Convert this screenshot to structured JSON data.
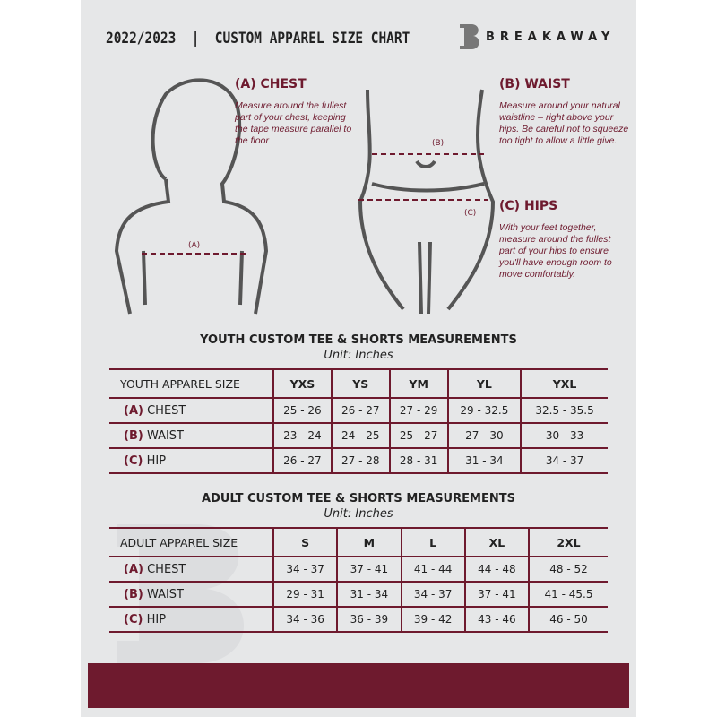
{
  "header": {
    "title": "2022/2023  |  CUSTOM APPAREL SIZE CHART",
    "brand": "BREAKAWAY",
    "logo_letter": "B"
  },
  "measures": {
    "chest": {
      "title": "(A) CHEST",
      "desc": "Measure around the fullest part of your chest, keeping the tape measure parallel to the floor",
      "marker": "(A)"
    },
    "waist": {
      "title": "(B) WAIST",
      "desc": "Measure around your natural waistline – right above your hips. Be careful not to squeeze too tight to allow a little give.",
      "marker": "(B)"
    },
    "hips": {
      "title": "(C) HIPS",
      "desc": "With your feet together, measure around the fullest part of your hips to ensure you'll have enough room to move comfortably.",
      "marker": "(C)"
    }
  },
  "youth": {
    "title": "YOUTH CUSTOM TEE & SHORTS MEASUREMENTS",
    "unit": "Unit: Inches",
    "size_label": "YOUTH APPAREL SIZE",
    "sizes": [
      "YXS",
      "YS",
      "YM",
      "YL",
      "YXL"
    ],
    "rows": [
      {
        "tag": "(A)",
        "name": "CHEST",
        "values": [
          "25 - 26",
          "26 - 27",
          "27 - 29",
          "29 - 32.5",
          "32.5 - 35.5"
        ]
      },
      {
        "tag": "(B)",
        "name": "WAIST",
        "values": [
          "23 - 24",
          "24 - 25",
          "25 - 27",
          "27 - 30",
          "30 - 33"
        ]
      },
      {
        "tag": "(C)",
        "name": "HIP",
        "values": [
          "26 - 27",
          "27 - 28",
          "28 - 31",
          "31 - 34",
          "34 - 37"
        ]
      }
    ]
  },
  "adult": {
    "title": "ADULT CUSTOM TEE & SHORTS MEASUREMENTS",
    "unit": "Unit: Inches",
    "size_label": "ADULT APPAREL SIZE",
    "sizes": [
      "S",
      "M",
      "L",
      "XL",
      "2XL"
    ],
    "rows": [
      {
        "tag": "(A)",
        "name": "CHEST",
        "values": [
          "34 - 37",
          "37 - 41",
          "41 - 44",
          "44 - 48",
          "48 - 52"
        ]
      },
      {
        "tag": "(B)",
        "name": "WAIST",
        "values": [
          "29 - 31",
          "31 - 34",
          "34 - 37",
          "37 - 41",
          "41 - 45.5"
        ]
      },
      {
        "tag": "(C)",
        "name": "HIP",
        "values": [
          "34 - 36",
          "36 - 39",
          "39 - 42",
          "43 - 46",
          "46 - 50"
        ]
      }
    ]
  },
  "colors": {
    "accent": "#6e1a2e",
    "background": "#e6e7e8"
  }
}
